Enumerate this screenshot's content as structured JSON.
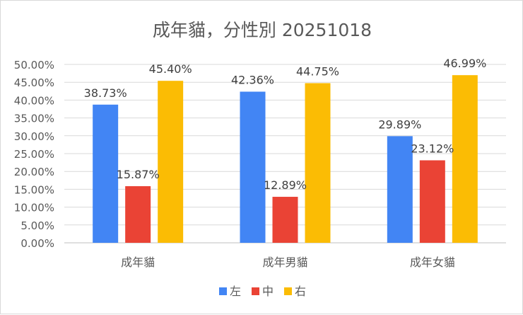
{
  "chart_data": {
    "type": "bar",
    "title": "成年貓，分性別 20251018",
    "categories": [
      "成年貓",
      "成年男貓",
      "成年女貓"
    ],
    "series": [
      {
        "name": "左",
        "color": "#4285f4",
        "values": [
          38.73,
          42.36,
          29.89
        ],
        "labels": [
          "38.73%",
          "42.36%",
          "29.89%"
        ]
      },
      {
        "name": "中",
        "color": "#ea4335",
        "values": [
          15.87,
          12.89,
          23.12
        ],
        "labels": [
          "15.87%",
          "12.89%",
          "23.12%"
        ]
      },
      {
        "name": "右",
        "color": "#fbbc04",
        "values": [
          45.4,
          44.75,
          46.99
        ],
        "labels": [
          "45.40%",
          "44.75%",
          "46.99%"
        ]
      }
    ],
    "yticks": [
      "0.00%",
      "5.00%",
      "10.00%",
      "15.00%",
      "20.00%",
      "25.00%",
      "30.00%",
      "35.00%",
      "40.00%",
      "45.00%",
      "50.00%"
    ],
    "ylim": [
      0,
      50
    ],
    "grid": true,
    "legend": "bottom"
  }
}
